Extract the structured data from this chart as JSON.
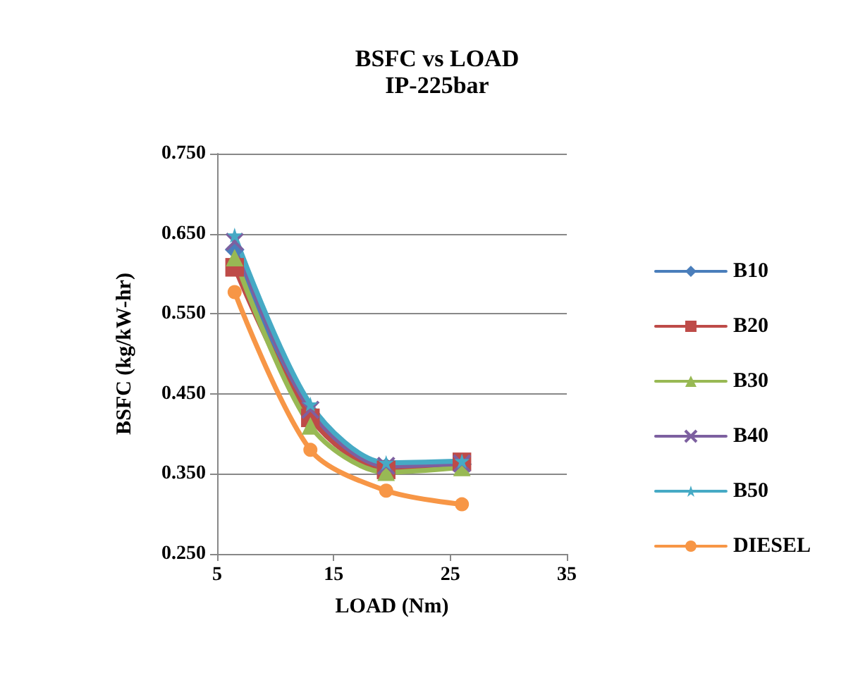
{
  "chart_data": {
    "type": "line",
    "title": "BSFC vs LOAD",
    "subtitle": "IP-225bar",
    "xlabel": "LOAD (Nm)",
    "ylabel": "BSFC (kg/kW-hr)",
    "x": [
      6.5,
      13,
      19.5,
      26
    ],
    "xlim": [
      5,
      35
    ],
    "xticks": [
      5,
      15,
      25,
      35
    ],
    "ylim": [
      0.25,
      0.75
    ],
    "yticks": [
      {
        "value": 0.25,
        "label": "0.250"
      },
      {
        "value": 0.35,
        "label": "0.350"
      },
      {
        "value": 0.45,
        "label": "0.450"
      },
      {
        "value": 0.55,
        "label": "0.550"
      },
      {
        "value": 0.65,
        "label": "0.650"
      },
      {
        "value": 0.75,
        "label": "0.750"
      }
    ],
    "grid": "y",
    "legend": "right",
    "line_style": "solid",
    "series": [
      {
        "name": "B10",
        "color": "#4a7ebb",
        "marker": "diamond",
        "values": [
          0.63,
          0.425,
          0.358,
          0.362
        ]
      },
      {
        "name": "B20",
        "color": "#be4b48",
        "marker": "square",
        "values": [
          0.608,
          0.42,
          0.355,
          0.365
        ]
      },
      {
        "name": "B30",
        "color": "#98b954",
        "marker": "triangle",
        "values": [
          0.62,
          0.41,
          0.352,
          0.358
        ]
      },
      {
        "name": "B40",
        "color": "#7d60a0",
        "marker": "cross",
        "values": [
          0.64,
          0.43,
          0.36,
          0.363
        ]
      },
      {
        "name": "B50",
        "color": "#46aac5",
        "marker": "star",
        "values": [
          0.648,
          0.437,
          0.364,
          0.366
        ]
      },
      {
        "name": "DIESEL",
        "color": "#f79646",
        "marker": "circle",
        "values": [
          0.577,
          0.38,
          0.329,
          0.312
        ]
      }
    ]
  }
}
